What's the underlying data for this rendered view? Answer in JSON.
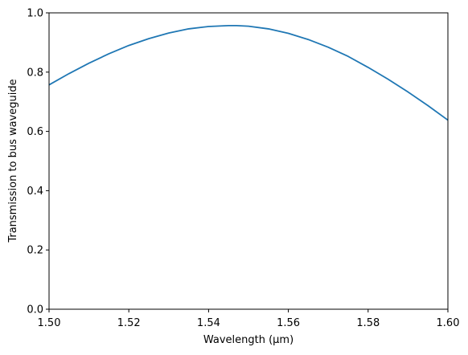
{
  "chart_data": {
    "type": "line",
    "title": "",
    "xlabel": "Wavelength (μm)",
    "ylabel": "Transmission to bus waveguide",
    "xlim": [
      1.5,
      1.6
    ],
    "ylim": [
      0.0,
      1.0
    ],
    "xticks": [
      1.5,
      1.52,
      1.54,
      1.56,
      1.58,
      1.6
    ],
    "xtick_labels": [
      "1.50",
      "1.52",
      "1.54",
      "1.56",
      "1.58",
      "1.60"
    ],
    "yticks": [
      0.0,
      0.2,
      0.4,
      0.6,
      0.8,
      1.0
    ],
    "ytick_labels": [
      "0.0",
      "0.2",
      "0.4",
      "0.6",
      "0.8",
      "1.0"
    ],
    "grid": false,
    "series": [
      {
        "color": "#1f77b4",
        "x": [
          1.5,
          1.505,
          1.51,
          1.515,
          1.52,
          1.525,
          1.53,
          1.535,
          1.54,
          1.545,
          1.547,
          1.55,
          1.555,
          1.56,
          1.565,
          1.57,
          1.575,
          1.58,
          1.585,
          1.59,
          1.595,
          1.6
        ],
        "y": [
          0.757,
          0.795,
          0.83,
          0.862,
          0.89,
          0.913,
          0.932,
          0.946,
          0.954,
          0.957,
          0.957,
          0.955,
          0.946,
          0.931,
          0.91,
          0.884,
          0.853,
          0.816,
          0.776,
          0.733,
          0.687,
          0.638
        ]
      }
    ]
  }
}
